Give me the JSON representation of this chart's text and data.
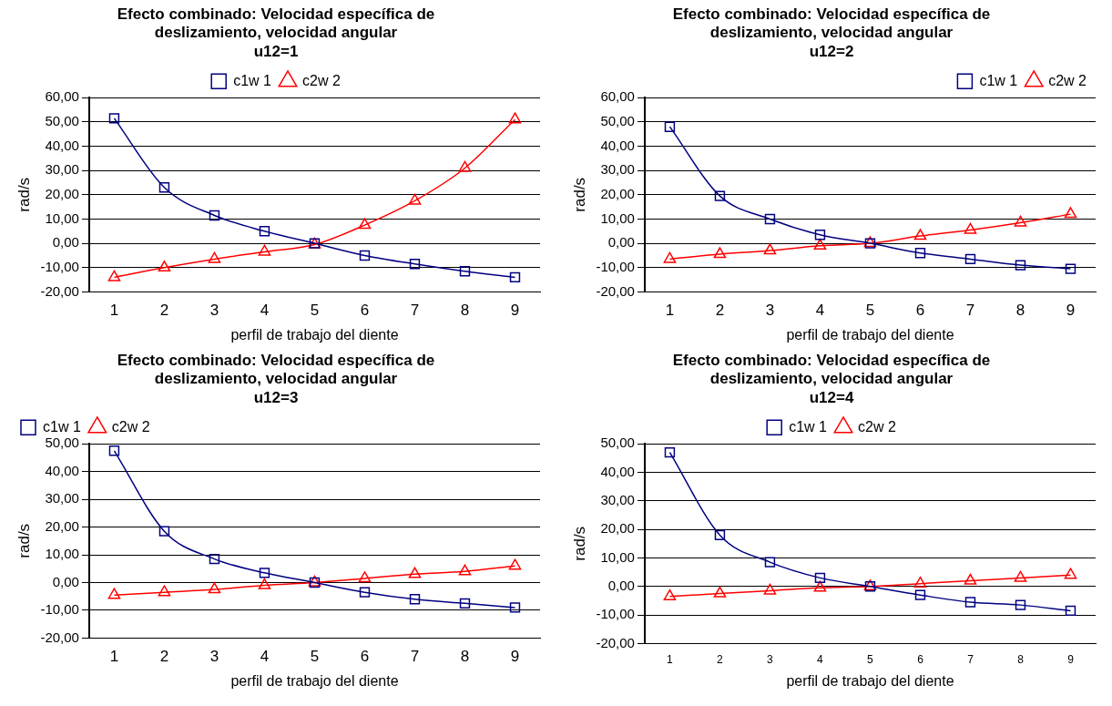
{
  "chart_data": [
    {
      "type": "line",
      "title": "Efecto combinado: Velocidad específica de deslizamiento, velocidad angular",
      "subtitle": "u12=1",
      "xlabel": "perfil de trabajo del diente",
      "ylabel": "rad/s",
      "categories": [
        "1",
        "2",
        "3",
        "4",
        "5",
        "6",
        "7",
        "8",
        "9"
      ],
      "ylim": [
        -20,
        60
      ],
      "yticks": [
        {
          "value": -20,
          "label": "-20,00"
        },
        {
          "value": -10,
          "label": "-10,00"
        },
        {
          "value": 0,
          "label": "0,00"
        },
        {
          "value": 10,
          "label": "10,00"
        },
        {
          "value": 20,
          "label": "20,00"
        },
        {
          "value": 30,
          "label": "30,00"
        },
        {
          "value": 40,
          "label": "40,00"
        },
        {
          "value": 50,
          "label": "50,00"
        },
        {
          "value": 60,
          "label": "60,00"
        }
      ],
      "grid": "y",
      "legend": "top",
      "series": [
        {
          "name": "c1w 1",
          "color": "#000080",
          "marker": "square",
          "values": [
            51.5,
            23,
            11.5,
            5,
            0,
            -5,
            -8.5,
            -11.5,
            -14
          ]
        },
        {
          "name": "c2w 2",
          "color": "#ff0000",
          "marker": "triangle",
          "values": [
            -14,
            -10,
            -6.5,
            -3.5,
            -0.5,
            7.5,
            17.5,
            31,
            51
          ]
        }
      ]
    },
    {
      "type": "line",
      "title": "Efecto combinado: Velocidad específica de deslizamiento, velocidad angular",
      "subtitle": "u12=2",
      "xlabel": "perfil de trabajo del diente",
      "ylabel": "rad/s",
      "categories": [
        "1",
        "2",
        "3",
        "4",
        "5",
        "6",
        "7",
        "8",
        "9"
      ],
      "ylim": [
        -20,
        60
      ],
      "yticks": [
        {
          "value": -20,
          "label": "-20,00"
        },
        {
          "value": -10,
          "label": "-10,00"
        },
        {
          "value": 0,
          "label": "0,00"
        },
        {
          "value": 10,
          "label": "10,00"
        },
        {
          "value": 20,
          "label": "20,00"
        },
        {
          "value": 30,
          "label": "30,00"
        },
        {
          "value": 40,
          "label": "40,00"
        },
        {
          "value": 50,
          "label": "50,00"
        },
        {
          "value": 60,
          "label": "60,00"
        }
      ],
      "grid": "y",
      "legend": "top right",
      "series": [
        {
          "name": "c1w 1",
          "color": "#000080",
          "marker": "square",
          "values": [
            48,
            19.5,
            10,
            3.5,
            0,
            -4,
            -6.5,
            -9,
            -10.5
          ]
        },
        {
          "name": "c2w 2",
          "color": "#ff0000",
          "marker": "triangle",
          "values": [
            -6.5,
            -4.5,
            -3,
            -1,
            0,
            3,
            5.5,
            8.5,
            12
          ]
        }
      ]
    },
    {
      "type": "line",
      "title": "Efecto combinado: Velocidad específica de deslizamiento, velocidad angular",
      "subtitle": "u12=3",
      "xlabel": "perfil de trabajo del diente",
      "ylabel": "rad/s",
      "categories": [
        "1",
        "2",
        "3",
        "4",
        "5",
        "6",
        "7",
        "8",
        "9"
      ],
      "ylim": [
        -20,
        50
      ],
      "yticks": [
        {
          "value": -20,
          "label": "-20,00"
        },
        {
          "value": -10,
          "label": "-10,00"
        },
        {
          "value": 0,
          "label": "0,00"
        },
        {
          "value": 10,
          "label": "10,00"
        },
        {
          "value": 20,
          "label": "20,00"
        },
        {
          "value": 30,
          "label": "30,00"
        },
        {
          "value": 40,
          "label": "40,00"
        },
        {
          "value": 50,
          "label": "50,00"
        }
      ],
      "grid": "y",
      "legend": "top left",
      "series": [
        {
          "name": "c1w 1",
          "color": "#000080",
          "marker": "square",
          "values": [
            47.5,
            18.5,
            8.5,
            3.5,
            0,
            -3.5,
            -6,
            -7.5,
            -9
          ]
        },
        {
          "name": "c2w 2",
          "color": "#ff0000",
          "marker": "triangle",
          "values": [
            -4.5,
            -3.5,
            -2.5,
            -1,
            0,
            1.5,
            3,
            4,
            6
          ]
        }
      ]
    },
    {
      "type": "line",
      "title": "Efecto combinado: Velocidad específica de deslizamiento, velocidad angular",
      "subtitle": "u12=4",
      "xlabel": "perfil de trabajo del diente",
      "ylabel": "rad/s",
      "categories": [
        "1",
        "2",
        "3",
        "4",
        "5",
        "6",
        "7",
        "8",
        "9"
      ],
      "ylim": [
        -20,
        50
      ],
      "yticks": [
        {
          "value": -20,
          "label": "-20,00"
        },
        {
          "value": -10,
          "label": "-10,00"
        },
        {
          "value": 0,
          "label": "0,00"
        },
        {
          "value": 10,
          "label": "10,00"
        },
        {
          "value": 20,
          "label": "20,00"
        },
        {
          "value": 30,
          "label": "30,00"
        },
        {
          "value": 40,
          "label": "40,00"
        },
        {
          "value": 50,
          "label": "50,00"
        }
      ],
      "grid": "y",
      "legend": "top",
      "series": [
        {
          "name": "c1w 1",
          "color": "#000080",
          "marker": "square",
          "values": [
            47,
            18,
            8.5,
            3,
            0,
            -3,
            -5.5,
            -6.5,
            -8.5
          ]
        },
        {
          "name": "c2w 2",
          "color": "#ff0000",
          "marker": "triangle",
          "values": [
            -3.5,
            -2.5,
            -1.5,
            -0.5,
            0,
            1,
            2,
            3,
            4
          ]
        }
      ]
    }
  ]
}
